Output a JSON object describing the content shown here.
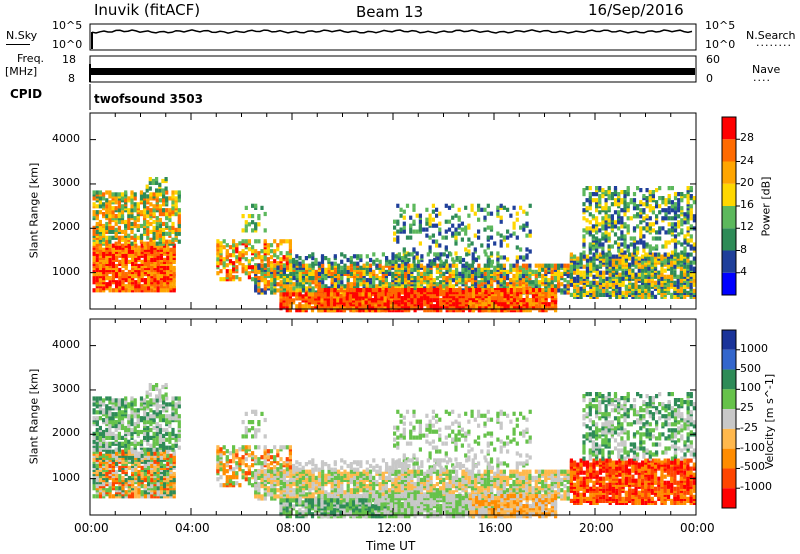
{
  "header": {
    "station": "Inuvik (fitACF)",
    "beam": "Beam 13",
    "date": "16/Sep/2016"
  },
  "nsky_panel": {
    "left_label": "N.Sky",
    "right_label": "N.Search",
    "left_ticks": [
      "10^5",
      "10^0"
    ],
    "right_ticks": [
      "10^5",
      "10^0"
    ],
    "right_dots": "........"
  },
  "freq_panel": {
    "left_label_line1": "Freq.",
    "left_label_line2": "[MHz]",
    "right_label": "Nave",
    "left_ticks": [
      "18",
      "8"
    ],
    "right_ticks": [
      "60",
      "0"
    ],
    "right_dots": "...."
  },
  "cpid_panel": {
    "label": "CPID",
    "value": "twofsound 3503"
  },
  "colors": {
    "power": [
      "#0000ff",
      "#1f3f9a",
      "#2e8b57",
      "#5cb85c",
      "#ffd700",
      "#ffa500",
      "#ff6a00",
      "#ff0000"
    ],
    "velocity": [
      "#ff0000",
      "#ff4500",
      "#ff8c00",
      "#ffb84d",
      "#c8c8c8",
      "#66c24a",
      "#2e8b57",
      "#3366cc",
      "#1a3399"
    ]
  },
  "chart_data": [
    {
      "type": "heatmap",
      "name": "power",
      "xlabel": "",
      "ylabel": "Slant Range [km]",
      "x_range_hours": [
        0,
        24
      ],
      "ylim": [
        180,
        4600
      ],
      "yticks": [
        1000,
        2000,
        3000,
        4000
      ],
      "colorbar": {
        "label": "Power [dB]",
        "ticks": [
          4,
          8,
          12,
          16,
          20,
          24,
          28
        ],
        "range": [
          0,
          32
        ]
      }
    },
    {
      "type": "heatmap",
      "name": "velocity",
      "xlabel": "Time UT",
      "ylabel": "Slant Range [km]",
      "x_range_hours": [
        0,
        24
      ],
      "ylim": [
        180,
        4600
      ],
      "yticks": [
        1000,
        2000,
        3000,
        4000
      ],
      "xticks": [
        "00:00",
        "04:00",
        "08:00",
        "12:00",
        "16:00",
        "20:00",
        "00:00"
      ],
      "colorbar": {
        "label": "Velocity [m s^-1]",
        "ticks": [
          1000,
          500,
          100,
          25,
          -25,
          -100,
          -500,
          -1000
        ]
      }
    }
  ]
}
